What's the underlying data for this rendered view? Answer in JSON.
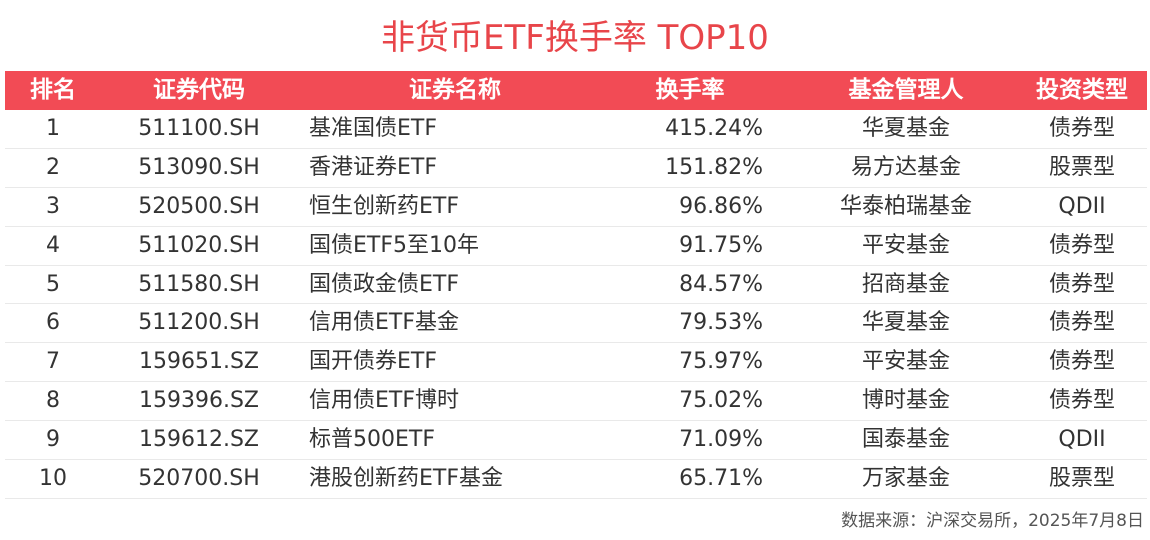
{
  "title": "非货币ETF换手率 TOP10",
  "header": {
    "rank": "排名",
    "code": "证券代码",
    "name": "证券名称",
    "turnover": "换手率",
    "manager": "基金管理人",
    "type": "投资类型"
  },
  "rows": [
    {
      "rank": "1",
      "code": "511100.SH",
      "name": "基准国债ETF",
      "turnover": "415.24%",
      "manager": "华夏基金",
      "type": "债券型"
    },
    {
      "rank": "2",
      "code": "513090.SH",
      "name": "香港证券ETF",
      "turnover": "151.82%",
      "manager": "易方达基金",
      "type": "股票型"
    },
    {
      "rank": "3",
      "code": "520500.SH",
      "name": "恒生创新药ETF",
      "turnover": "96.86%",
      "manager": "华泰柏瑞基金",
      "type": "QDII"
    },
    {
      "rank": "4",
      "code": "511020.SH",
      "name": "国债ETF5至10年",
      "turnover": "91.75%",
      "manager": "平安基金",
      "type": "债券型"
    },
    {
      "rank": "5",
      "code": "511580.SH",
      "name": "国债政金债ETF",
      "turnover": "84.57%",
      "manager": "招商基金",
      "type": "债券型"
    },
    {
      "rank": "6",
      "code": "511200.SH",
      "name": "信用债ETF基金",
      "turnover": "79.53%",
      "manager": "华夏基金",
      "type": "债券型"
    },
    {
      "rank": "7",
      "code": "159651.SZ",
      "name": "国开债券ETF",
      "turnover": "75.97%",
      "manager": "平安基金",
      "type": "债券型"
    },
    {
      "rank": "8",
      "code": "159396.SZ",
      "name": "信用债ETF博时",
      "turnover": "75.02%",
      "manager": "博时基金",
      "type": "债券型"
    },
    {
      "rank": "9",
      "code": "159612.SZ",
      "name": "标普500ETF",
      "turnover": "71.09%",
      "manager": "国泰基金",
      "type": "QDII"
    },
    {
      "rank": "10",
      "code": "520700.SH",
      "name": "港股创新药ETF基金",
      "turnover": "65.71%",
      "manager": "万家基金",
      "type": "股票型"
    }
  ],
  "footer": "数据来源：沪深交易所，2025年7月8日",
  "colors": {
    "accent": "#f24b55",
    "title": "#e8454a",
    "text": "#333333",
    "divider": "#e9e9e9"
  }
}
